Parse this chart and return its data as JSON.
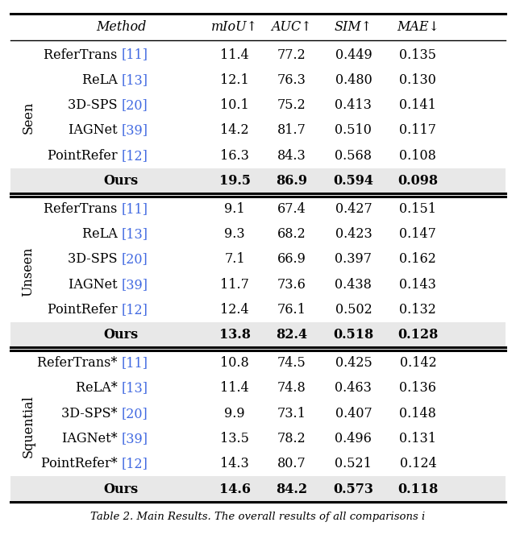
{
  "columns": [
    "Method",
    "mIoU↑",
    "AUC↑",
    "SIM↑",
    "MAE↓"
  ],
  "sections": [
    {
      "label": "Seen",
      "rows": [
        {
          "method": "ReferTrans",
          "ref": "[11]",
          "miou": "11.4",
          "auc": "77.2",
          "sim": "0.449",
          "mae": "0.135",
          "bold": false
        },
        {
          "method": "ReLA",
          "ref": "[13]",
          "miou": "12.1",
          "auc": "76.3",
          "sim": "0.480",
          "mae": "0.130",
          "bold": false
        },
        {
          "method": "3D-SPS",
          "ref": "[20]",
          "miou": "10.1",
          "auc": "75.2",
          "sim": "0.413",
          "mae": "0.141",
          "bold": false
        },
        {
          "method": "IAGNet",
          "ref": "[39]",
          "miou": "14.2",
          "auc": "81.7",
          "sim": "0.510",
          "mae": "0.117",
          "bold": false
        },
        {
          "method": "PointRefer",
          "ref": "[12]",
          "miou": "16.3",
          "auc": "84.3",
          "sim": "0.568",
          "mae": "0.108",
          "bold": false
        },
        {
          "method": "Ours",
          "ref": "",
          "miou": "19.5",
          "auc": "86.9",
          "sim": "0.594",
          "mae": "0.098",
          "bold": true
        }
      ]
    },
    {
      "label": "Unseen",
      "rows": [
        {
          "method": "ReferTrans",
          "ref": "[11]",
          "miou": "9.1",
          "auc": "67.4",
          "sim": "0.427",
          "mae": "0.151",
          "bold": false
        },
        {
          "method": "ReLA",
          "ref": "[13]",
          "miou": "9.3",
          "auc": "68.2",
          "sim": "0.423",
          "mae": "0.147",
          "bold": false
        },
        {
          "method": "3D-SPS",
          "ref": "[20]",
          "miou": "7.1",
          "auc": "66.9",
          "sim": "0.397",
          "mae": "0.162",
          "bold": false
        },
        {
          "method": "IAGNet",
          "ref": "[39]",
          "miou": "11.7",
          "auc": "73.6",
          "sim": "0.438",
          "mae": "0.143",
          "bold": false
        },
        {
          "method": "PointRefer",
          "ref": "[12]",
          "miou": "12.4",
          "auc": "76.1",
          "sim": "0.502",
          "mae": "0.132",
          "bold": false
        },
        {
          "method": "Ours",
          "ref": "",
          "miou": "13.8",
          "auc": "82.4",
          "sim": "0.518",
          "mae": "0.128",
          "bold": true
        }
      ]
    },
    {
      "label": "Squential",
      "rows": [
        {
          "method": "ReferTrans*",
          "ref": "[11]",
          "miou": "10.8",
          "auc": "74.5",
          "sim": "0.425",
          "mae": "0.142",
          "bold": false
        },
        {
          "method": "ReLA*",
          "ref": "[13]",
          "miou": "11.4",
          "auc": "74.8",
          "sim": "0.463",
          "mae": "0.136",
          "bold": false
        },
        {
          "method": "3D-SPS*",
          "ref": "[20]",
          "miou": "9.9",
          "auc": "73.1",
          "sim": "0.407",
          "mae": "0.148",
          "bold": false
        },
        {
          "method": "IAGNet*",
          "ref": "[39]",
          "miou": "13.5",
          "auc": "78.2",
          "sim": "0.496",
          "mae": "0.131",
          "bold": false
        },
        {
          "method": "PointRefer*",
          "ref": "[12]",
          "miou": "14.3",
          "auc": "80.7",
          "sim": "0.521",
          "mae": "0.124",
          "bold": false
        },
        {
          "method": "Ours",
          "ref": "",
          "miou": "14.6",
          "auc": "84.2",
          "sim": "0.573",
          "mae": "0.118",
          "bold": true
        }
      ]
    }
  ],
  "ref_color": "#4169E1",
  "ours_bg": "#e8e8e8",
  "font_size": 11.5,
  "caption": "Table 2. Main Results. The overall results of all comparisons i"
}
